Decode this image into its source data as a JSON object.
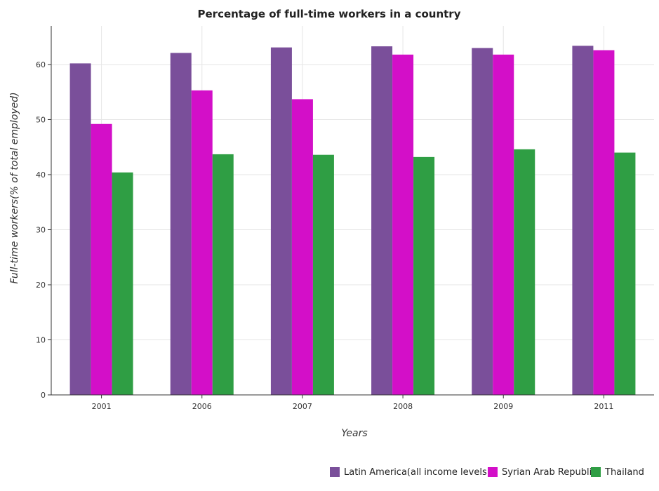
{
  "chart_data": {
    "type": "bar",
    "title": "Percentage of full-time workers in a country",
    "xlabel": "Years",
    "ylabel": "Full-time workers(% of total employed)",
    "categories": [
      "2001",
      "2006",
      "2007",
      "2008",
      "2009",
      "2011"
    ],
    "series": [
      {
        "name": "Latin America(all income levels)",
        "color": "#7a4f9a",
        "values": [
          60.2,
          62.1,
          63.1,
          63.3,
          63.0,
          63.4
        ]
      },
      {
        "name": "Syrian Arab Republic",
        "color": "#d30fc8",
        "values": [
          49.2,
          55.3,
          53.7,
          61.8,
          61.8,
          62.6
        ]
      },
      {
        "name": "Thailand",
        "color": "#2f9e44",
        "values": [
          40.4,
          43.7,
          43.6,
          43.2,
          44.6,
          44.0
        ]
      }
    ],
    "yticks": [
      0,
      10,
      20,
      30,
      40,
      50,
      60
    ],
    "ylim": [
      0,
      67
    ],
    "grid": true,
    "legend_position": "bottom-right"
  }
}
